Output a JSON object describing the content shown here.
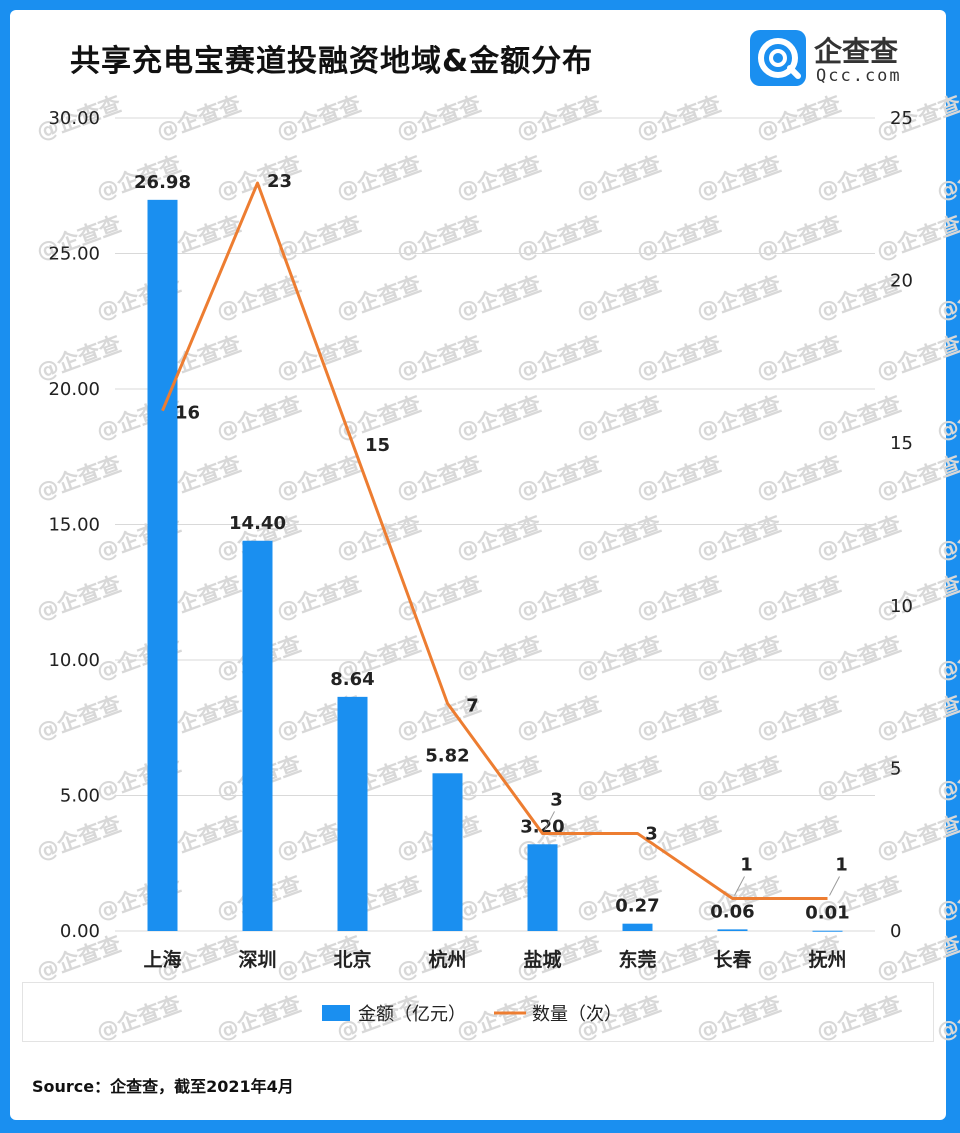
{
  "title": "共享充电宝赛道投融资地域&金额分布",
  "logo": {
    "name": "企查查",
    "domain": "Qcc.com",
    "watermark": "企查查"
  },
  "source": "Source：企查查，截至2021年4月",
  "colors": {
    "border": "#1a8ff0",
    "bar": "#1a8ff0",
    "line": "#ed7d31",
    "grid": "#d9d9d9"
  },
  "chart_data": {
    "type": "bar+line",
    "title": "共享充电宝赛道投融资地域&金额分布",
    "categories": [
      "上海",
      "深圳",
      "北京",
      "杭州",
      "盐城",
      "东莞",
      "长春",
      "抚州"
    ],
    "series": [
      {
        "name": "金额（亿元）",
        "type": "bar",
        "axis": "left",
        "values": [
          26.98,
          14.4,
          8.64,
          5.82,
          3.2,
          0.27,
          0.06,
          0.01
        ],
        "labels": [
          "26.98",
          "14.40",
          "8.64",
          "5.82",
          "3.20",
          "0.27",
          "0.06",
          "0.01"
        ]
      },
      {
        "name": "数量（次）",
        "type": "line",
        "axis": "right",
        "values": [
          16,
          23,
          15,
          7,
          3,
          3,
          1,
          1
        ],
        "labels": [
          "16",
          "23",
          "15",
          "7",
          "3",
          "3",
          "1",
          "1"
        ]
      }
    ],
    "left_axis": {
      "min": 0,
      "max": 30,
      "ticks": [
        "0.00",
        "5.00",
        "10.00",
        "15.00",
        "20.00",
        "25.00",
        "30.00"
      ]
    },
    "right_axis": {
      "min": 0,
      "max": 25,
      "ticks": [
        "0",
        "5",
        "10",
        "15",
        "20",
        "25"
      ]
    },
    "grid": true,
    "legend": "bottom"
  }
}
